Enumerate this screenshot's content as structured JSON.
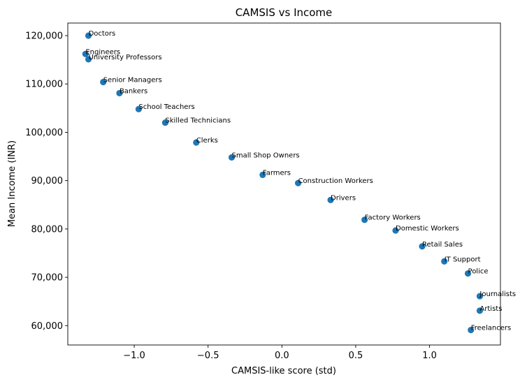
{
  "chart_data": {
    "type": "scatter",
    "title": "CAMSIS vs Income",
    "xlabel": "CAMSIS-like score (std)",
    "ylabel": "Mean Income (INR)",
    "xlim": [
      -1.45,
      1.48
    ],
    "ylim": [
      56000,
      122600
    ],
    "xticks": [
      -1.0,
      -0.5,
      0.0,
      0.5,
      1.0
    ],
    "xtick_labels": [
      "−1.0",
      "−0.5",
      "0.0",
      "0.5",
      "1.0"
    ],
    "yticks": [
      60000,
      70000,
      80000,
      90000,
      100000,
      110000,
      120000
    ],
    "ytick_labels": [
      "60,000",
      "70,000",
      "80,000",
      "90,000",
      "100,000",
      "110,000",
      "120,000"
    ],
    "grid": false,
    "color": "#1f77b4",
    "points": [
      {
        "label": "Doctors",
        "x": -1.31,
        "y": 120000
      },
      {
        "label": "Engineers",
        "x": -1.33,
        "y": 116200
      },
      {
        "label": "University Professors",
        "x": -1.31,
        "y": 115100
      },
      {
        "label": "Senior Managers",
        "x": -1.21,
        "y": 110400
      },
      {
        "label": "Bankers",
        "x": -1.1,
        "y": 108100
      },
      {
        "label": "School Teachers",
        "x": -0.97,
        "y": 104800
      },
      {
        "label": "Skilled Technicians",
        "x": -0.79,
        "y": 102000
      },
      {
        "label": "Clerks",
        "x": -0.58,
        "y": 97900
      },
      {
        "label": "Small Shop Owners",
        "x": -0.34,
        "y": 94800
      },
      {
        "label": "Farmers",
        "x": -0.13,
        "y": 91200
      },
      {
        "label": "Construction Workers",
        "x": 0.11,
        "y": 89500
      },
      {
        "label": "Drivers",
        "x": 0.33,
        "y": 86000
      },
      {
        "label": "Factory Workers",
        "x": 0.56,
        "y": 81900
      },
      {
        "label": "Domestic Workers",
        "x": 0.77,
        "y": 79700
      },
      {
        "label": "Retail Sales",
        "x": 0.95,
        "y": 76400
      },
      {
        "label": "IT Support",
        "x": 1.1,
        "y": 73300
      },
      {
        "label": "Police",
        "x": 1.26,
        "y": 70800
      },
      {
        "label": "Journalists",
        "x": 1.34,
        "y": 66100
      },
      {
        "label": "Artists",
        "x": 1.34,
        "y": 63100
      },
      {
        "label": "Freelancers",
        "x": 1.28,
        "y": 59100
      }
    ]
  }
}
